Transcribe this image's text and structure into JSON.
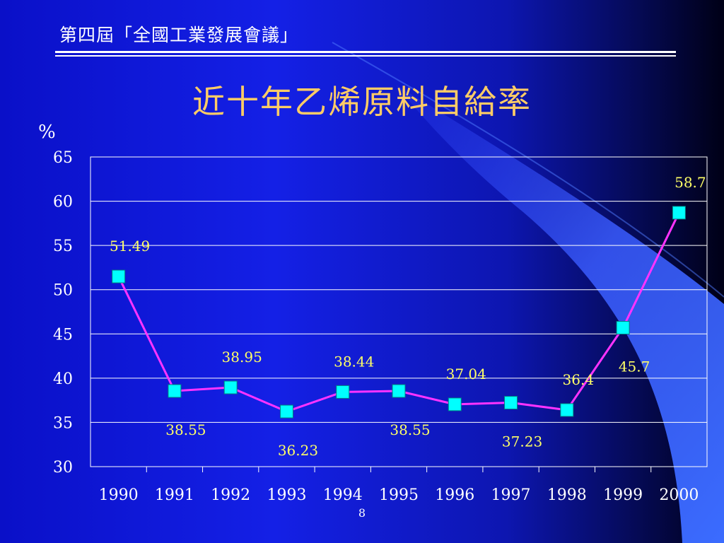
{
  "slide": {
    "header": "第四屆「全國工業發展會議」",
    "page_number": "8"
  },
  "colors": {
    "line": "#ff33ff",
    "marker": "#00ffff",
    "data_label": "#ffff66",
    "title": "#ffcc66",
    "axis_text": "#ffffff",
    "gridline": "#ffffff"
  },
  "chart_data": {
    "type": "line",
    "title": "近十年乙烯原料自給率",
    "ylabel": "%",
    "xlabel": "",
    "categories": [
      "1990",
      "1991",
      "1992",
      "1993",
      "1994",
      "1995",
      "1996",
      "1997",
      "1998",
      "1999",
      "2000"
    ],
    "series": [
      {
        "values": [
          51.49,
          38.55,
          38.95,
          36.23,
          38.44,
          38.55,
          37.04,
          37.23,
          36.4,
          45.7,
          58.7
        ],
        "data_labels": [
          "51.49",
          "38.55",
          "38.95",
          "36.23",
          "38.44",
          "38.55",
          "37.04",
          "37.23",
          "36.4",
          "45.7",
          "58.7"
        ],
        "label_positions": [
          "above",
          "below",
          "above",
          "below",
          "above",
          "below",
          "above",
          "below",
          "above",
          "below",
          "above"
        ]
      }
    ],
    "ylim": [
      30,
      65
    ],
    "yticks": [
      "30",
      "35",
      "40",
      "45",
      "50",
      "55",
      "60",
      "65"
    ],
    "grid": true,
    "legend": "none"
  }
}
